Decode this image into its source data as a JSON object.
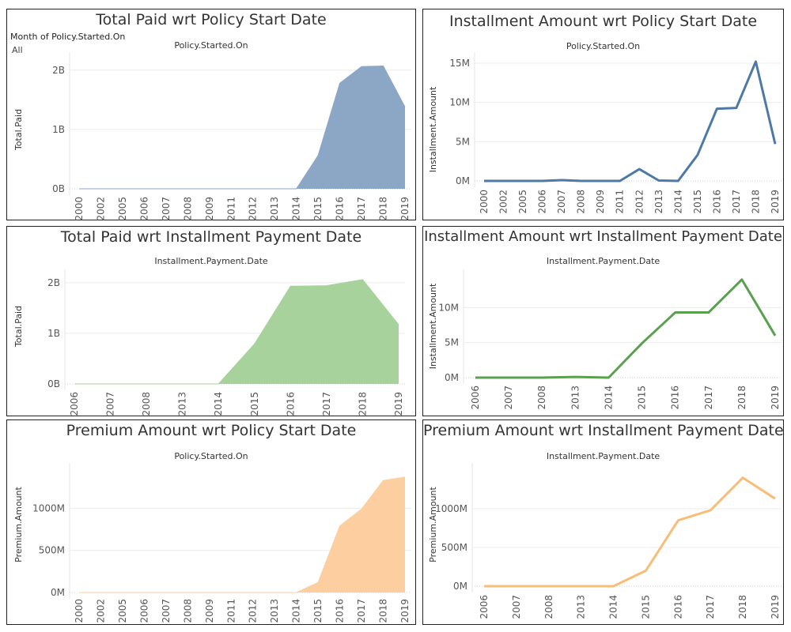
{
  "chart_data": [
    {
      "type": "area",
      "title": "Total Paid wrt Policy Start Date",
      "subtitle": "Policy.Started.On",
      "ylabel": "Total.Paid",
      "filter": {
        "label": "Month of Policy.Started.On",
        "value": "All"
      },
      "color": "#8ca6c6",
      "ylim": [
        0,
        2250000000
      ],
      "yticks": [
        0,
        1000000000,
        2000000000
      ],
      "ytick_labels": [
        "0B",
        "1B",
        "2B"
      ],
      "x": [
        "2000",
        "2002",
        "2005",
        "2006",
        "2007",
        "2008",
        "2009",
        "2011",
        "2012",
        "2013",
        "2014",
        "2015",
        "2016",
        "2017",
        "2018",
        "2019"
      ],
      "values": [
        0,
        0,
        0,
        0,
        0,
        0,
        0,
        0,
        0,
        0,
        0,
        560000000,
        1780000000,
        2060000000,
        2070000000,
        1380000000
      ]
    },
    {
      "type": "line",
      "title": "Installment Amount wrt Policy Start Date",
      "subtitle": "Policy.Started.On",
      "ylabel": "Installment.Amount",
      "color": "#4e79a7",
      "ylim": [
        0,
        16000000
      ],
      "yticks": [
        0,
        5000000,
        10000000,
        15000000
      ],
      "ytick_labels": [
        "0M",
        "5M",
        "10M",
        "15M"
      ],
      "x": [
        "2000",
        "2002",
        "2005",
        "2006",
        "2007",
        "2008",
        "2009",
        "2011",
        "2012",
        "2013",
        "2014",
        "2015",
        "2016",
        "2017",
        "2018",
        "2019"
      ],
      "values": [
        0,
        0,
        0,
        0,
        100000,
        0,
        0,
        0,
        1500000,
        50000,
        0,
        3300000,
        9200000,
        9300000,
        15200000,
        4700000
      ]
    },
    {
      "type": "area",
      "title": "Total Paid wrt Installment Payment Date",
      "subtitle": "Installment.Payment.Date",
      "ylabel": "Total.Paid",
      "color": "#a7d29b",
      "ylim": [
        0,
        2200000000
      ],
      "yticks": [
        0,
        1000000000,
        2000000000
      ],
      "ytick_labels": [
        "0B",
        "1B",
        "2B"
      ],
      "x": [
        "2006",
        "2007",
        "2008",
        "2013",
        "2014",
        "2015",
        "2016",
        "2017",
        "2018",
        "2019"
      ],
      "values": [
        0,
        0,
        0,
        0,
        0,
        790000000,
        1930000000,
        1940000000,
        2060000000,
        1170000000
      ]
    },
    {
      "type": "line",
      "title": "Installment Amount wrt Installment Payment Date",
      "subtitle": "Installment.Payment.Date",
      "ylabel": "Installment.Amount",
      "color": "#59a14f",
      "ylim": [
        0,
        15000000
      ],
      "yticks": [
        0,
        5000000,
        10000000
      ],
      "ytick_labels": [
        "0M",
        "5M",
        "10M"
      ],
      "x": [
        "2006",
        "2007",
        "2008",
        "2013",
        "2014",
        "2015",
        "2016",
        "2017",
        "2018",
        "2019"
      ],
      "values": [
        0,
        0,
        0,
        100000,
        0,
        4900000,
        9300000,
        9300000,
        14000000,
        6000000
      ]
    },
    {
      "type": "area",
      "title": "Premium Amount wrt Policy Start Date",
      "subtitle": "Policy.Started.On",
      "ylabel": "Premium.Amount",
      "color": "#fdcfa0",
      "ylim": [
        0,
        1500000000
      ],
      "yticks": [
        0,
        500000000,
        1000000000
      ],
      "ytick_labels": [
        "0M",
        "500M",
        "1000M"
      ],
      "x": [
        "2000",
        "2002",
        "2005",
        "2006",
        "2007",
        "2008",
        "2009",
        "2011",
        "2012",
        "2013",
        "2014",
        "2015",
        "2016",
        "2017",
        "2018",
        "2019"
      ],
      "values": [
        0,
        0,
        0,
        0,
        0,
        0,
        0,
        0,
        0,
        0,
        0,
        120000000,
        790000000,
        990000000,
        1330000000,
        1370000000
      ]
    },
    {
      "type": "line",
      "title": "Premium Amount wrt Installment Payment Date",
      "subtitle": "Installment.Payment.Date",
      "ylabel": "Premium.Amount",
      "color": "#f8bd78",
      "ylim": [
        0,
        1550000000
      ],
      "yticks": [
        0,
        500000000,
        1000000000
      ],
      "ytick_labels": [
        "0M",
        "500M",
        "1000M"
      ],
      "x": [
        "2006",
        "2007",
        "2008",
        "2013",
        "2014",
        "2015",
        "2016",
        "2017",
        "2018",
        "2019"
      ],
      "values": [
        0,
        0,
        0,
        0,
        0,
        200000000,
        850000000,
        980000000,
        1400000000,
        1130000000
      ]
    }
  ]
}
